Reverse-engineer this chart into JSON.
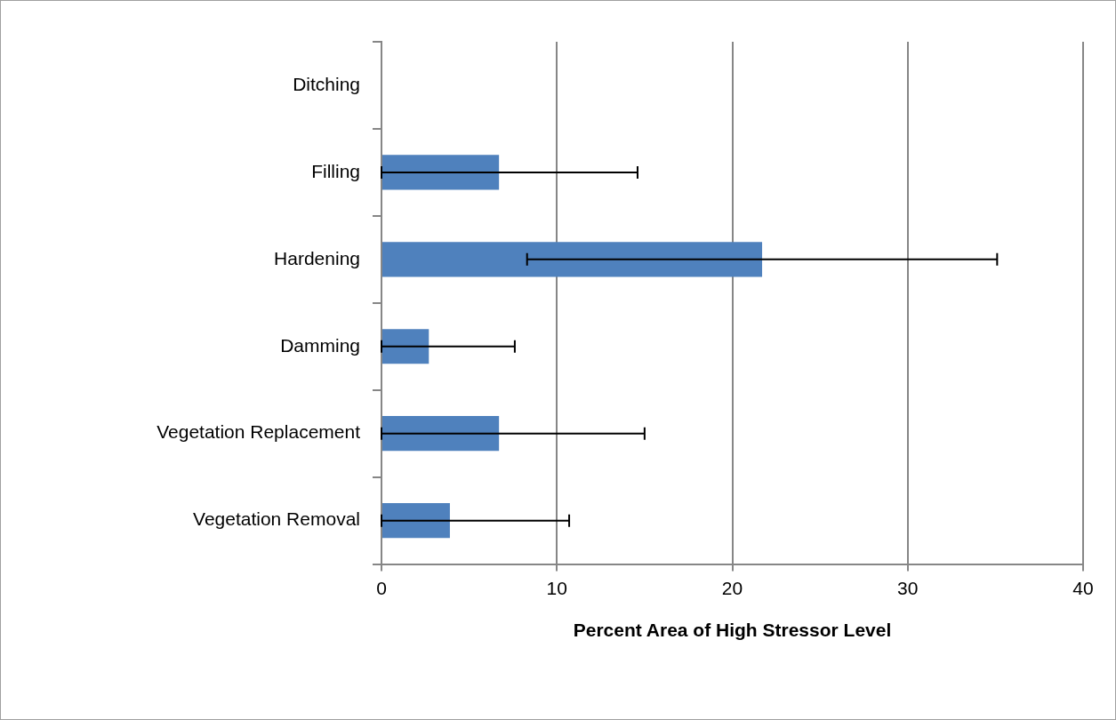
{
  "chart_data": {
    "type": "bar",
    "orientation": "horizontal",
    "xlabel": "Percent Area of High Stressor Level",
    "categories": [
      "Ditching",
      "Filling",
      "Hardening",
      "Damming",
      "Vegetation Replacement",
      "Vegetation Removal"
    ],
    "values": [
      0,
      6.7,
      21.7,
      2.7,
      6.7,
      3.9
    ],
    "errors": [
      null,
      [
        0,
        14.6
      ],
      13.4,
      [
        0,
        7.6
      ],
      [
        0,
        15
      ],
      [
        0,
        10.7
      ]
    ],
    "color": "#4f81bd",
    "xlim": [
      0,
      40
    ],
    "xticks": [
      0,
      10,
      20,
      30,
      40
    ],
    "grid": "x",
    "legend": false
  }
}
